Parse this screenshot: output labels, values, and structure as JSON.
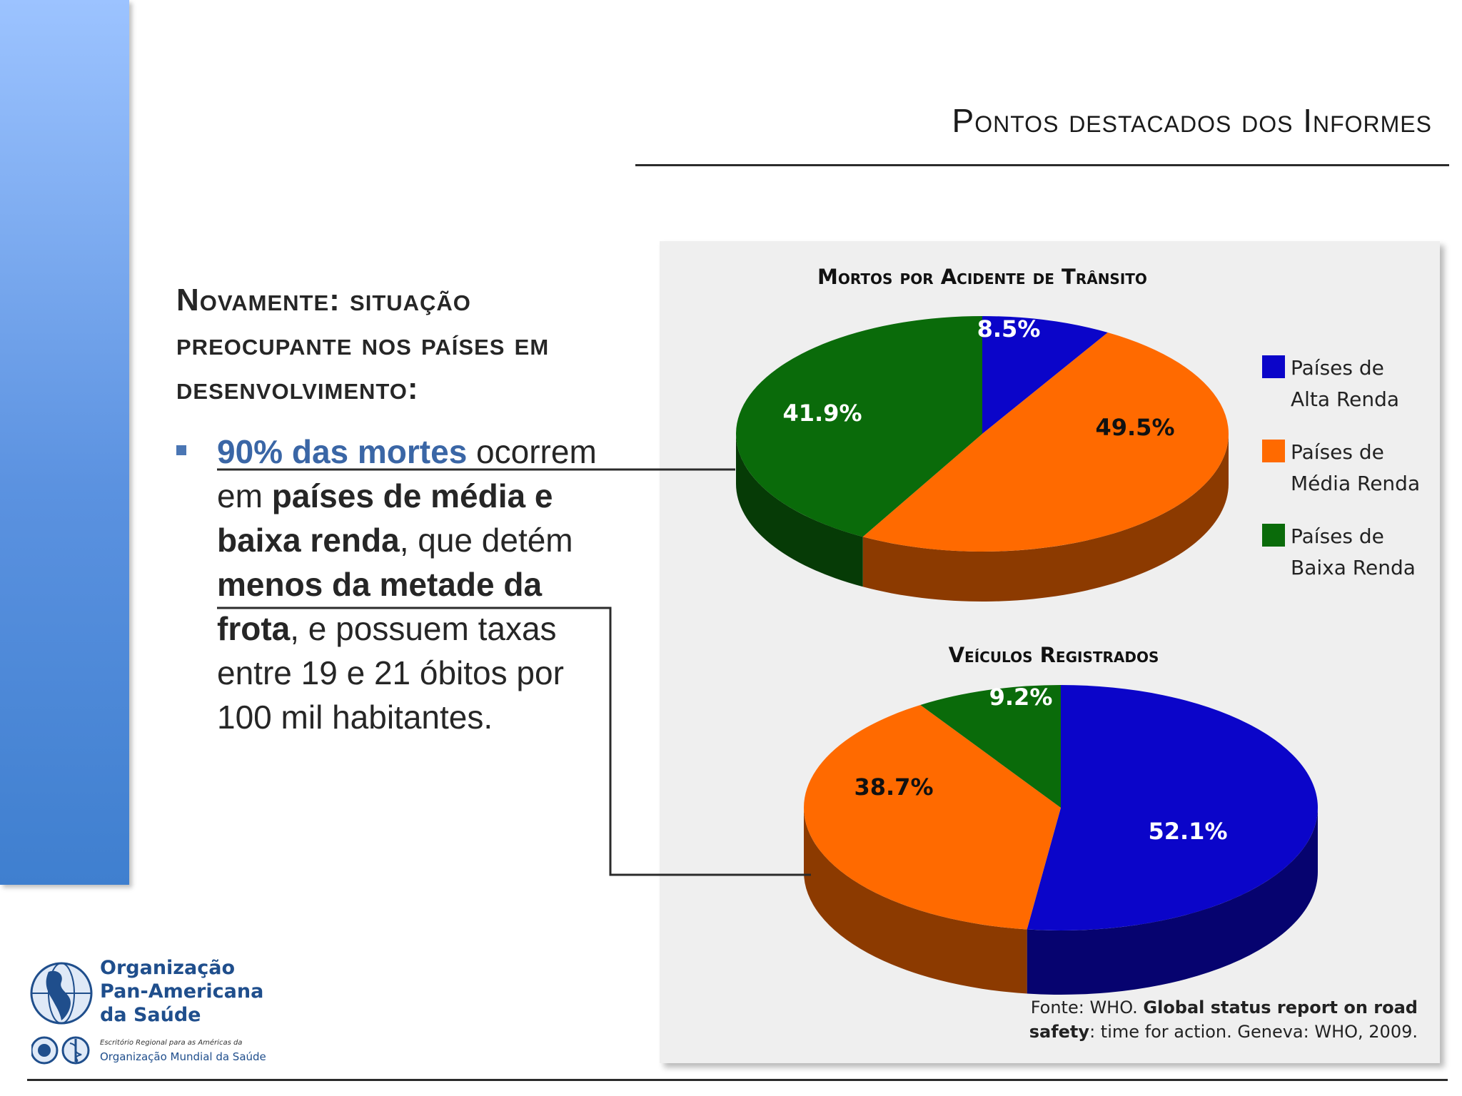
{
  "slide": {
    "title": "Pontos destacados dos Informes",
    "heading": "Novamente: situação preocupante nos países em desenvolvimento:",
    "bullet": {
      "lead": "90% das mortes",
      "t1": " ocorrem em  ",
      "b1": "países de média e baixa renda",
      "t2": ", que detém ",
      "b2": "menos da metade da frota",
      "t3": ", e possuem taxas entre 19 e 21 óbitos por 100 mil habitantes."
    }
  },
  "legend": {
    "items": [
      {
        "line1": "Países de",
        "line2": "Alta Renda",
        "color": "#0b05c9"
      },
      {
        "line1": "Países de",
        "line2": "Média Renda",
        "color": "#ff6a00"
      },
      {
        "line1": "Países de",
        "line2": "Baixa Renda",
        "color": "#0a6b0a"
      }
    ]
  },
  "source": {
    "prefix": "Fonte: WHO. ",
    "bold1": "Global status report on road",
    "bold2": "safety",
    "suffix": ": time for action. Geneva: WHO, 2009."
  },
  "logo": {
    "line1": "Organização",
    "line2": "Pan-Americana",
    "line3": "da Saúde",
    "sub": "Escritório Regional para as Américas da",
    "sub2": "Organização Mundial da Saúde"
  },
  "chart_data": [
    {
      "type": "pie",
      "title": "Mortos por Acidente de Trânsito",
      "categories": [
        "Países de Alta Renda",
        "Países de Média Renda",
        "Países de Baixa Renda"
      ],
      "values": [
        8.5,
        49.5,
        41.9
      ],
      "labels": [
        "8.5%",
        "49.5%",
        "41.9%"
      ],
      "colors": [
        "#0b05c9",
        "#ff6a00",
        "#0a6b0a"
      ],
      "label_colors": [
        "#ffffff",
        "#111111",
        "#ffffff"
      ]
    },
    {
      "type": "pie",
      "title": "Veículos Registrados",
      "categories": [
        "Países de Alta Renda",
        "Países de Média Renda",
        "Países de Baixa Renda"
      ],
      "values": [
        52.1,
        38.7,
        9.2
      ],
      "labels": [
        "52.1%",
        "38.7%",
        "9.2%"
      ],
      "colors": [
        "#0b05c9",
        "#ff6a00",
        "#0a6b0a"
      ],
      "label_colors": [
        "#ffffff",
        "#111111",
        "#ffffff"
      ]
    }
  ]
}
